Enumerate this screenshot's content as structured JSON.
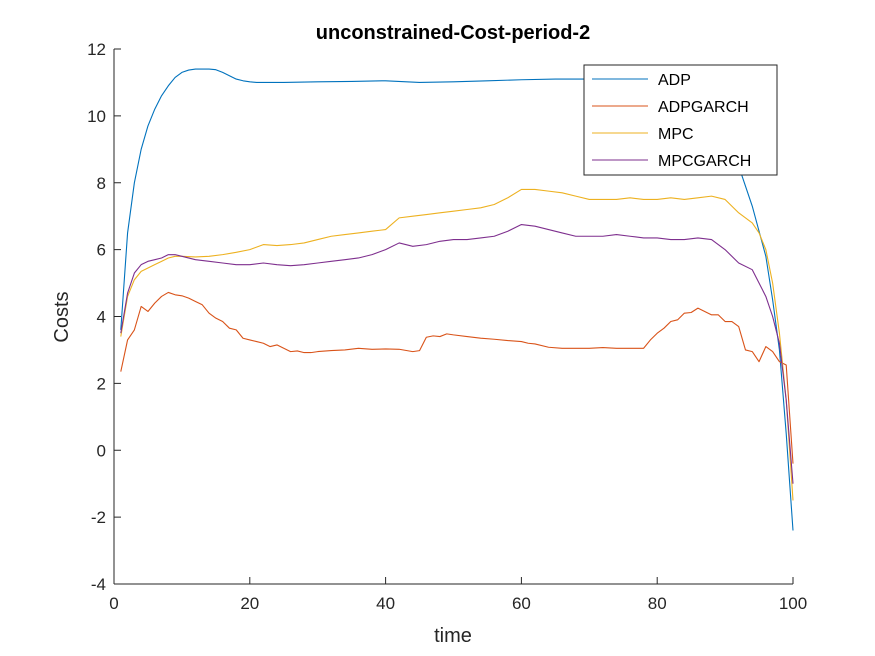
{
  "chart_data": {
    "type": "line",
    "title": "unconstrained-Cost-period-2",
    "xlabel": "time",
    "ylabel": "Costs",
    "xlim": [
      0,
      100
    ],
    "ylim": [
      -4,
      12
    ],
    "xticks": [
      0,
      20,
      40,
      60,
      80,
      100
    ],
    "yticks": [
      -4,
      -2,
      0,
      2,
      4,
      6,
      8,
      10,
      12
    ],
    "grid": false,
    "legend_position": "top-right",
    "series": [
      {
        "name": "ADP",
        "color": "#0072BD",
        "x": [
          1,
          2,
          3,
          4,
          5,
          6,
          7,
          8,
          9,
          10,
          11,
          12,
          13,
          14,
          15,
          16,
          17,
          18,
          19,
          20,
          21,
          22,
          25,
          30,
          35,
          40,
          45,
          50,
          55,
          60,
          65,
          70,
          75,
          80,
          85,
          88,
          90,
          92,
          94,
          96,
          97,
          98,
          99,
          100
        ],
        "values": [
          3.6,
          6.5,
          8.0,
          9.0,
          9.7,
          10.2,
          10.6,
          10.9,
          11.15,
          11.3,
          11.37,
          11.4,
          11.4,
          11.4,
          11.38,
          11.3,
          11.2,
          11.1,
          11.05,
          11.02,
          11.0,
          11.0,
          11.0,
          11.02,
          11.03,
          11.05,
          11.0,
          11.02,
          11.05,
          11.08,
          11.1,
          11.1,
          11.08,
          11.0,
          10.6,
          10.0,
          9.4,
          8.5,
          7.3,
          5.8,
          4.5,
          3.0,
          0.5,
          -2.4
        ]
      },
      {
        "name": "ADPGARCH",
        "color": "#D95319",
        "x": [
          1,
          2,
          3,
          4,
          5,
          6,
          7,
          8,
          9,
          10,
          11,
          12,
          13,
          14,
          15,
          16,
          17,
          18,
          19,
          20,
          21,
          22,
          23,
          24,
          25,
          26,
          27,
          28,
          29,
          30,
          32,
          34,
          36,
          38,
          40,
          42,
          44,
          45,
          46,
          47,
          48,
          49,
          50,
          52,
          54,
          56,
          58,
          60,
          61,
          62,
          64,
          66,
          68,
          70,
          72,
          74,
          76,
          78,
          79,
          80,
          81,
          82,
          83,
          84,
          85,
          86,
          87,
          88,
          89,
          90,
          91,
          92,
          93,
          94,
          95,
          96,
          97,
          98,
          99,
          100
        ],
        "values": [
          2.35,
          3.3,
          3.6,
          4.3,
          4.15,
          4.4,
          4.6,
          4.72,
          4.65,
          4.62,
          4.55,
          4.45,
          4.35,
          4.1,
          3.95,
          3.85,
          3.65,
          3.6,
          3.35,
          3.3,
          3.25,
          3.2,
          3.1,
          3.15,
          3.05,
          2.95,
          2.97,
          2.92,
          2.92,
          2.95,
          2.98,
          3.0,
          3.05,
          3.02,
          3.03,
          3.02,
          2.95,
          2.98,
          3.38,
          3.42,
          3.4,
          3.48,
          3.45,
          3.4,
          3.35,
          3.32,
          3.28,
          3.25,
          3.2,
          3.18,
          3.08,
          3.05,
          3.05,
          3.05,
          3.07,
          3.05,
          3.05,
          3.05,
          3.3,
          3.5,
          3.65,
          3.85,
          3.9,
          4.1,
          4.12,
          4.25,
          4.15,
          4.05,
          4.05,
          3.85,
          3.85,
          3.7,
          3.0,
          2.95,
          2.65,
          3.1,
          2.95,
          2.65,
          2.55,
          -0.4
        ]
      },
      {
        "name": "MPC",
        "color": "#EDB120",
        "x": [
          1,
          2,
          3,
          4,
          5,
          6,
          7,
          8,
          9,
          10,
          12,
          14,
          16,
          18,
          20,
          22,
          24,
          26,
          28,
          30,
          32,
          34,
          36,
          38,
          40,
          42,
          44,
          46,
          48,
          50,
          52,
          54,
          56,
          58,
          60,
          62,
          64,
          66,
          68,
          70,
          72,
          74,
          76,
          78,
          80,
          82,
          84,
          86,
          88,
          90,
          92,
          94,
          95,
          96,
          97,
          98,
          99,
          100
        ],
        "values": [
          3.4,
          4.6,
          5.1,
          5.35,
          5.45,
          5.55,
          5.65,
          5.75,
          5.8,
          5.8,
          5.78,
          5.8,
          5.85,
          5.92,
          6.0,
          6.15,
          6.12,
          6.15,
          6.2,
          6.3,
          6.4,
          6.45,
          6.5,
          6.55,
          6.6,
          6.95,
          7.0,
          7.05,
          7.1,
          7.15,
          7.2,
          7.25,
          7.35,
          7.55,
          7.8,
          7.8,
          7.75,
          7.7,
          7.6,
          7.5,
          7.5,
          7.5,
          7.55,
          7.5,
          7.5,
          7.55,
          7.5,
          7.55,
          7.6,
          7.5,
          7.1,
          6.8,
          6.5,
          6.0,
          5.0,
          3.5,
          1.5,
          -1.5
        ]
      },
      {
        "name": "MPCGARCH",
        "color": "#7E2F8E",
        "x": [
          1,
          2,
          3,
          4,
          5,
          6,
          7,
          8,
          9,
          10,
          12,
          14,
          16,
          18,
          20,
          22,
          24,
          26,
          28,
          30,
          32,
          34,
          36,
          38,
          40,
          42,
          44,
          46,
          48,
          50,
          52,
          54,
          56,
          58,
          60,
          62,
          64,
          66,
          68,
          70,
          72,
          74,
          76,
          78,
          80,
          82,
          84,
          86,
          88,
          90,
          92,
          94,
          96,
          97,
          98,
          99,
          100
        ],
        "values": [
          3.5,
          4.7,
          5.3,
          5.55,
          5.65,
          5.7,
          5.75,
          5.85,
          5.85,
          5.8,
          5.7,
          5.65,
          5.6,
          5.55,
          5.55,
          5.6,
          5.55,
          5.52,
          5.55,
          5.6,
          5.65,
          5.7,
          5.75,
          5.85,
          6.0,
          6.2,
          6.1,
          6.15,
          6.25,
          6.3,
          6.3,
          6.35,
          6.4,
          6.55,
          6.75,
          6.7,
          6.6,
          6.5,
          6.4,
          6.4,
          6.4,
          6.45,
          6.4,
          6.35,
          6.35,
          6.3,
          6.3,
          6.35,
          6.3,
          6.0,
          5.6,
          5.4,
          4.6,
          4.0,
          3.2,
          1.5,
          -1.0
        ]
      }
    ]
  }
}
